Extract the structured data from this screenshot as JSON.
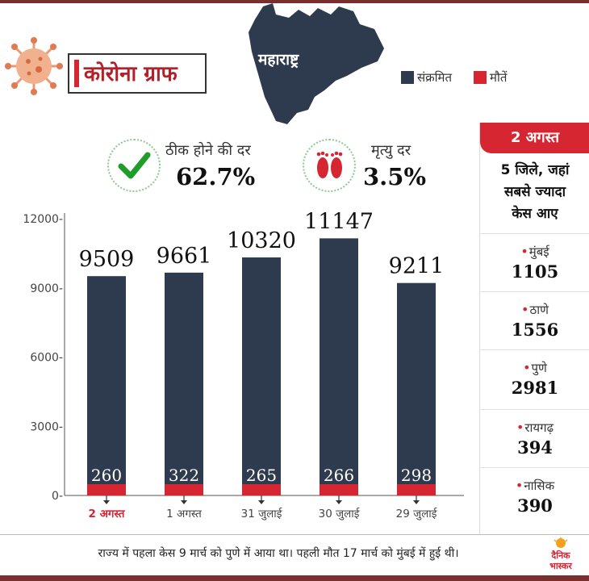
{
  "header": {
    "title": "कोरोना ग्राफ",
    "state": "महाराष्ट्र",
    "legend": [
      {
        "label": "संक्रमित",
        "color": "#2e3a4d"
      },
      {
        "label": "मौतें",
        "color": "#d62631"
      }
    ]
  },
  "stats": {
    "recovery": {
      "label": "ठीक होने की दर",
      "value": "62.7%"
    },
    "death": {
      "label": "मृत्यु दर",
      "value": "3.5%"
    }
  },
  "chart_data": {
    "type": "bar",
    "categories": [
      "2 अगस्त",
      "1 अगस्त",
      "31 जुलाई",
      "30 जुलाई",
      "29 जुलाई"
    ],
    "series": [
      {
        "name": "संक्रमित",
        "values": [
          9509,
          9661,
          10320,
          11147,
          9211
        ],
        "color": "#2e3a4d"
      },
      {
        "name": "मौतें",
        "values": [
          260,
          322,
          265,
          266,
          298
        ],
        "color": "#d62631"
      }
    ],
    "y_ticks": [
      "0-",
      "3000-",
      "6000-",
      "9000-",
      "12000-"
    ],
    "ylim": [
      0,
      12000
    ],
    "highlight_category": "2 अगस्त",
    "grid": false
  },
  "sidebar": {
    "date": "2 अगस्त",
    "subtitle_lines": [
      "5 जिले, जहां",
      "सबसे ज्यादा",
      "केस आए"
    ],
    "districts": [
      {
        "name": "मुंबई",
        "cases": "1105"
      },
      {
        "name": "ठाणे",
        "cases": "1556"
      },
      {
        "name": "पुणे",
        "cases": "2981"
      },
      {
        "name": "रायगढ़",
        "cases": "394"
      },
      {
        "name": "नासिक",
        "cases": "390"
      }
    ]
  },
  "footer": {
    "note": "राज्य में पहला केस 9 मार्च को पुणे में आया था। पहली मौत 17 मार्च को मुंबई में हुई थी।",
    "logo_text": [
      "दैनिक",
      "भास्कर"
    ]
  },
  "colors": {
    "accent": "#d62631",
    "bar": "#2e3a4d",
    "frame": "#7a2e2e"
  }
}
